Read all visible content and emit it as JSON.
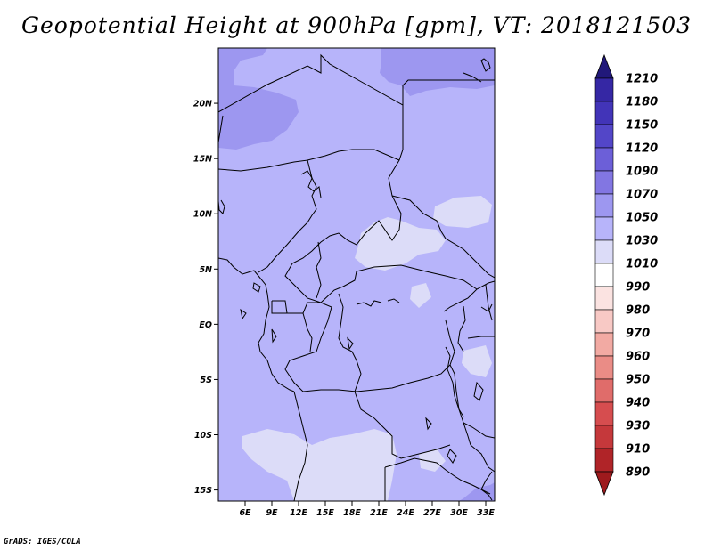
{
  "title": "Geopotential Height at 900hPa [gpm], VT: 2018121503",
  "credit": "GrADS: IGES/COLA",
  "map": {
    "lon_range": [
      3,
      34
    ],
    "lat_range": [
      -16,
      25
    ],
    "x_ticks": [
      "6E",
      "9E",
      "12E",
      "15E",
      "18E",
      "21E",
      "24E",
      "27E",
      "30E",
      "33E"
    ],
    "y_ticks": [
      "20N",
      "15N",
      "10N",
      "5N",
      "EQ",
      "5S",
      "10S",
      "15S"
    ],
    "background_color": "#b7b4fa",
    "field_regions": [
      {
        "level": "1050",
        "color": "#9d97f0"
      },
      {
        "level": "1030",
        "color": "#b7b4fa"
      },
      {
        "level": "1010",
        "color": "#dcdcf8"
      }
    ]
  },
  "colorbar": {
    "levels": [
      {
        "label": "1210",
        "color": "#2a1f8c"
      },
      {
        "label": "1180",
        "color": "#3527a4"
      },
      {
        "label": "1150",
        "color": "#4234b8"
      },
      {
        "label": "1120",
        "color": "#5346c8"
      },
      {
        "label": "1090",
        "color": "#6c5fd8"
      },
      {
        "label": "1070",
        "color": "#8276e2"
      },
      {
        "label": "1050",
        "color": "#9d97f0"
      },
      {
        "label": "1030",
        "color": "#b7b4fa"
      },
      {
        "label": "1010",
        "color": "#dcdcf8"
      },
      {
        "label": "990",
        "color": "#ffffff"
      },
      {
        "label": "980",
        "color": "#fbe3e1"
      },
      {
        "label": "970",
        "color": "#f8c9c5"
      },
      {
        "label": "960",
        "color": "#f2aaa3"
      },
      {
        "label": "950",
        "color": "#ea8c86"
      },
      {
        "label": "940",
        "color": "#e06c6a"
      },
      {
        "label": "930",
        "color": "#d64d4f"
      },
      {
        "label": "910",
        "color": "#c5383b"
      },
      {
        "label": "890",
        "color": "#b02428"
      }
    ],
    "top_arrow_color": "#21187a",
    "bottom_arrow_color": "#9e1a1d"
  }
}
